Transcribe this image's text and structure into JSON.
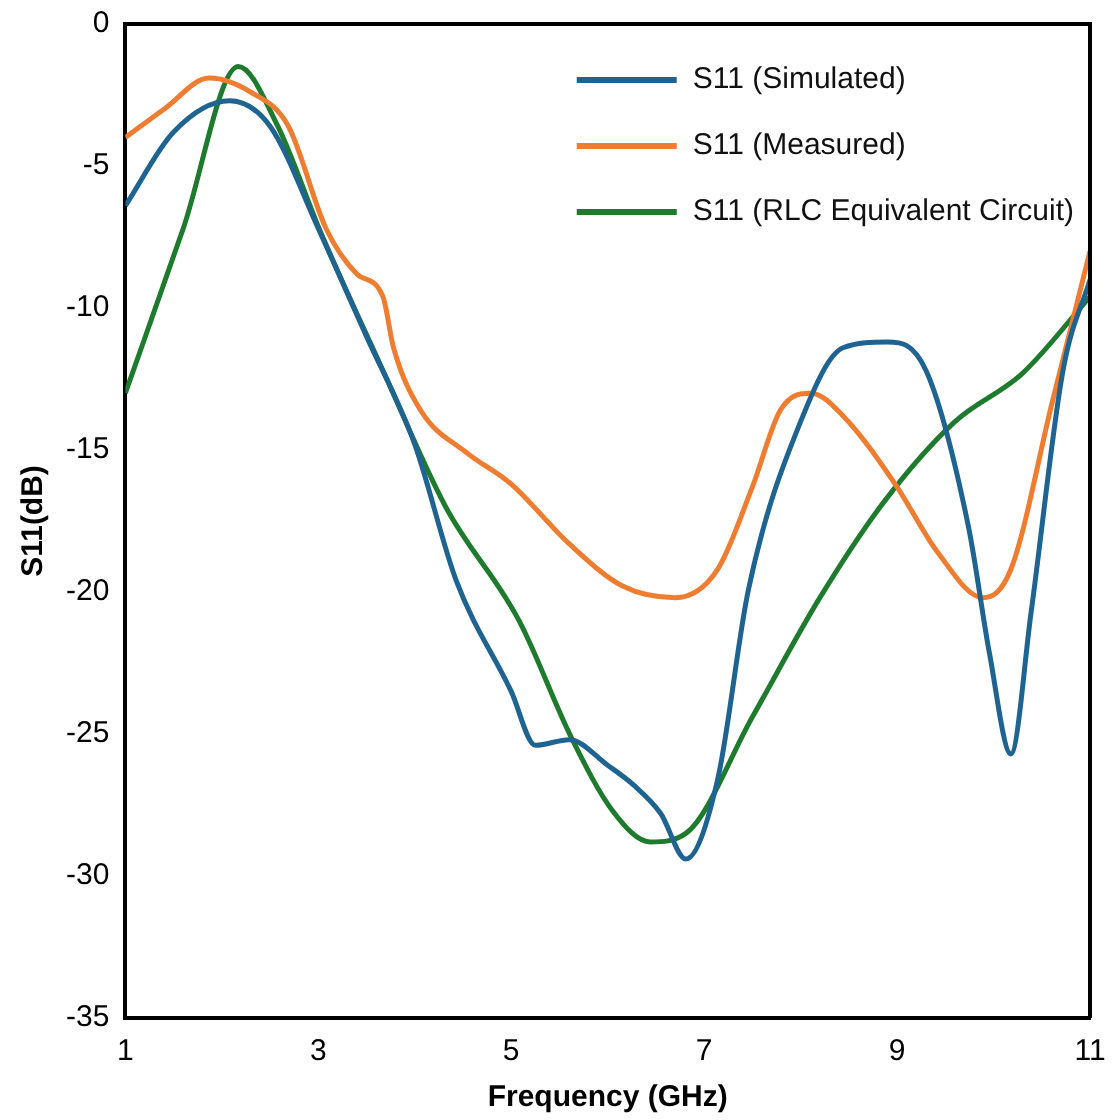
{
  "chart_data": {
    "type": "line",
    "xlabel": "Frequency (GHz)",
    "ylabel": "S11(dB)",
    "xlim": [
      1,
      11
    ],
    "xticks": [
      1,
      3,
      5,
      7,
      9,
      11
    ],
    "ylim": [
      -35,
      0
    ],
    "yticks": [
      -35,
      -30,
      -25,
      -20,
      -15,
      -10,
      -5,
      0
    ],
    "grid": false,
    "legend": "top right",
    "marker": "none",
    "line_style": "solid",
    "series": [
      {
        "name": "S11 (Simulated)",
        "color": "#1f6391",
        "x": [
          1,
          1.5,
          2.08,
          2.5,
          3,
          3.5,
          4,
          4.43,
          5.0,
          5.25,
          5.6,
          6.0,
          6.27,
          6.55,
          6.81,
          7.14,
          7.46,
          8.0,
          8.44,
          8.9,
          9.3,
          9.74,
          9.96,
          10.18,
          10.39,
          10.72,
          11
        ],
        "values": [
          -6.4,
          -3.8,
          -2.7,
          -3.6,
          -7.2,
          -11.0,
          -14.8,
          -19.6,
          -23.5,
          -25.4,
          -25.2,
          -26.1,
          -26.8,
          -27.8,
          -29.4,
          -26.6,
          -19.9,
          -14,
          -11.4,
          -11.2,
          -12.2,
          -17.7,
          -22.2,
          -25.7,
          -20.7,
          -12.2,
          -9
        ]
      },
      {
        "name": "S11 (Measured)",
        "color": "#ee7d31",
        "x": [
          1,
          1.4,
          1.87,
          2.3,
          2.69,
          3.08,
          3.4,
          3.67,
          3.78,
          4.06,
          4.54,
          5.0,
          5.6,
          6.16,
          6.7,
          7.14,
          7.5,
          7.79,
          8.11,
          8.44,
          8.98,
          9.42,
          9.89,
          10.18,
          10.61,
          11
        ],
        "values": [
          -4,
          -3,
          -1.9,
          -2.4,
          -3.6,
          -7.2,
          -8.8,
          -9.6,
          -11.4,
          -13.6,
          -15.1,
          -16.2,
          -18.3,
          -19.8,
          -20.2,
          -19.2,
          -16.3,
          -13.6,
          -13,
          -13.8,
          -16.2,
          -18.6,
          -20.2,
          -19.2,
          -13.3,
          -8
        ]
      },
      {
        "name": "S11 (RLC Equivalent Circuit)",
        "color": "#1e7a2c",
        "x": [
          1,
          1.6,
          2.17,
          2.58,
          3.02,
          3.67,
          4.32,
          5.08,
          5.62,
          6.05,
          6.44,
          6.81,
          7.5,
          8.2,
          8.87,
          9.6,
          10.3,
          11
        ],
        "values": [
          -13,
          -7.2,
          -1.5,
          -3.6,
          -7.3,
          -12.2,
          -17,
          -21,
          -25.1,
          -27.7,
          -28.8,
          -28.5,
          -24.4,
          -20.2,
          -16.8,
          -14,
          -12.3,
          -9.6
        ]
      }
    ]
  }
}
